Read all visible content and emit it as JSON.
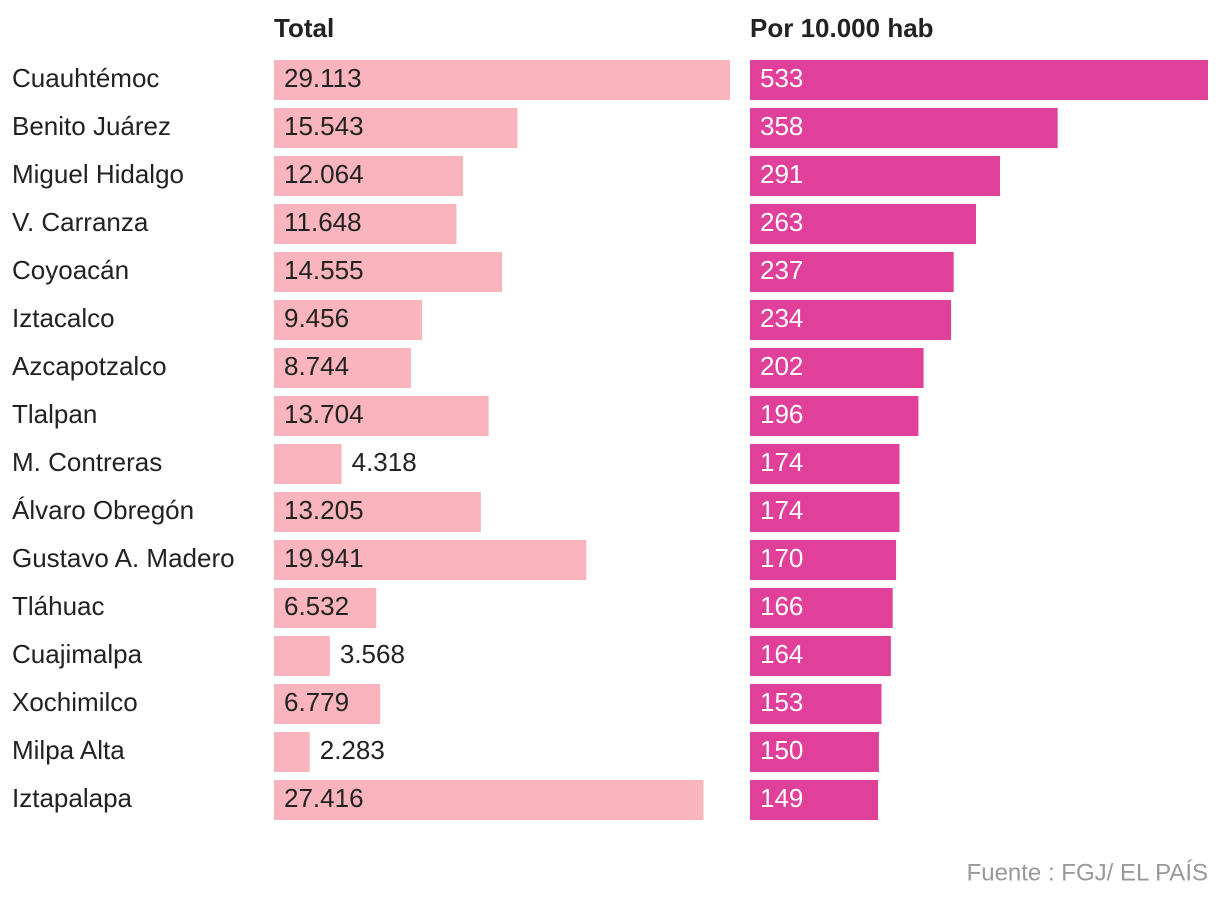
{
  "chart_data": {
    "type": "hbar_panels",
    "categories": [
      "Cuauhtémoc",
      "Benito Juárez",
      "Miguel Hidalgo",
      "V. Carranza",
      "Coyoacán",
      "Iztacalco",
      "Azcapotzalco",
      "Tlalpan",
      "M. Contreras",
      "Álvaro Obregón",
      "Gustavo A. Madero",
      "Tláhuac",
      "Cuajimalpa",
      "Xochimilco",
      "Milpa Alta",
      "Iztapalapa"
    ],
    "series": [
      {
        "name": "Total",
        "color": "#f9b4bd",
        "label_color": "#222222",
        "values": [
          29113,
          15543,
          12064,
          11648,
          14555,
          9456,
          8744,
          13704,
          4318,
          13205,
          19941,
          6532,
          3568,
          6779,
          2283,
          27416
        ],
        "value_labels": [
          "29.113",
          "15.543",
          "12.064",
          "11.648",
          "14.555",
          "9.456",
          "8.744",
          "13.704",
          "4.318",
          "13.205",
          "19.941",
          "6.532",
          "3.568",
          "6.779",
          "2.283",
          "27.416"
        ]
      },
      {
        "name": "Por 10.000 hab",
        "color": "#e0409a",
        "label_color": "#ffffff",
        "values": [
          533,
          358,
          291,
          263,
          237,
          234,
          202,
          196,
          174,
          174,
          170,
          166,
          164,
          153,
          150,
          149
        ]
      }
    ],
    "source": "Fuente : FGJ/ EL PAÍS"
  }
}
